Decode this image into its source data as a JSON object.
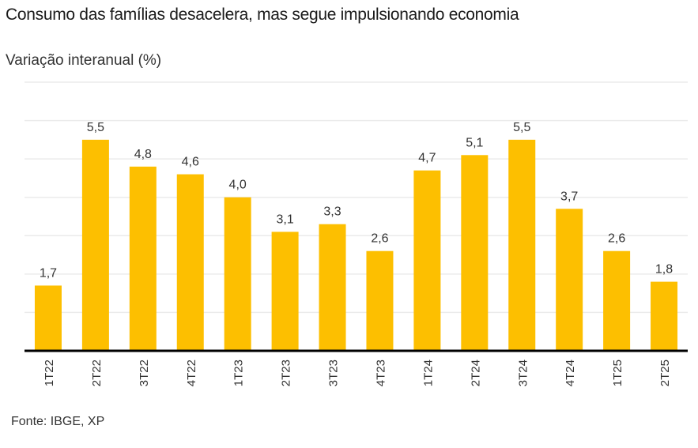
{
  "chart_data": {
    "type": "bar",
    "title": "Consumo das famílias desacelera, mas segue impulsionando economia",
    "subtitle": "Variação interanual (%)",
    "xlabel": "",
    "ylabel": "",
    "categories": [
      "1T22",
      "2T22",
      "3T22",
      "4T22",
      "1T23",
      "2T23",
      "3T23",
      "4T23",
      "1T24",
      "2T24",
      "3T24",
      "4T24",
      "1T25",
      "2T25"
    ],
    "values": [
      1.7,
      5.5,
      4.8,
      4.6,
      4.0,
      3.1,
      3.3,
      2.6,
      4.7,
      5.1,
      5.5,
      3.7,
      2.6,
      1.8
    ],
    "value_labels": [
      "1,7",
      "5,5",
      "4,8",
      "4,6",
      "4,0",
      "3,1",
      "3,3",
      "2,6",
      "4,7",
      "5,1",
      "5,5",
      "3,7",
      "2,6",
      "1,8"
    ],
    "ylim": [
      0,
      7
    ],
    "gridlines": [
      1,
      2,
      3,
      4,
      5,
      6,
      7
    ],
    "grid": true,
    "y_tick_labels_shown": false,
    "legend": "none",
    "bar_color": "#fdbf00",
    "source": "Fonte: IBGE, XP"
  }
}
